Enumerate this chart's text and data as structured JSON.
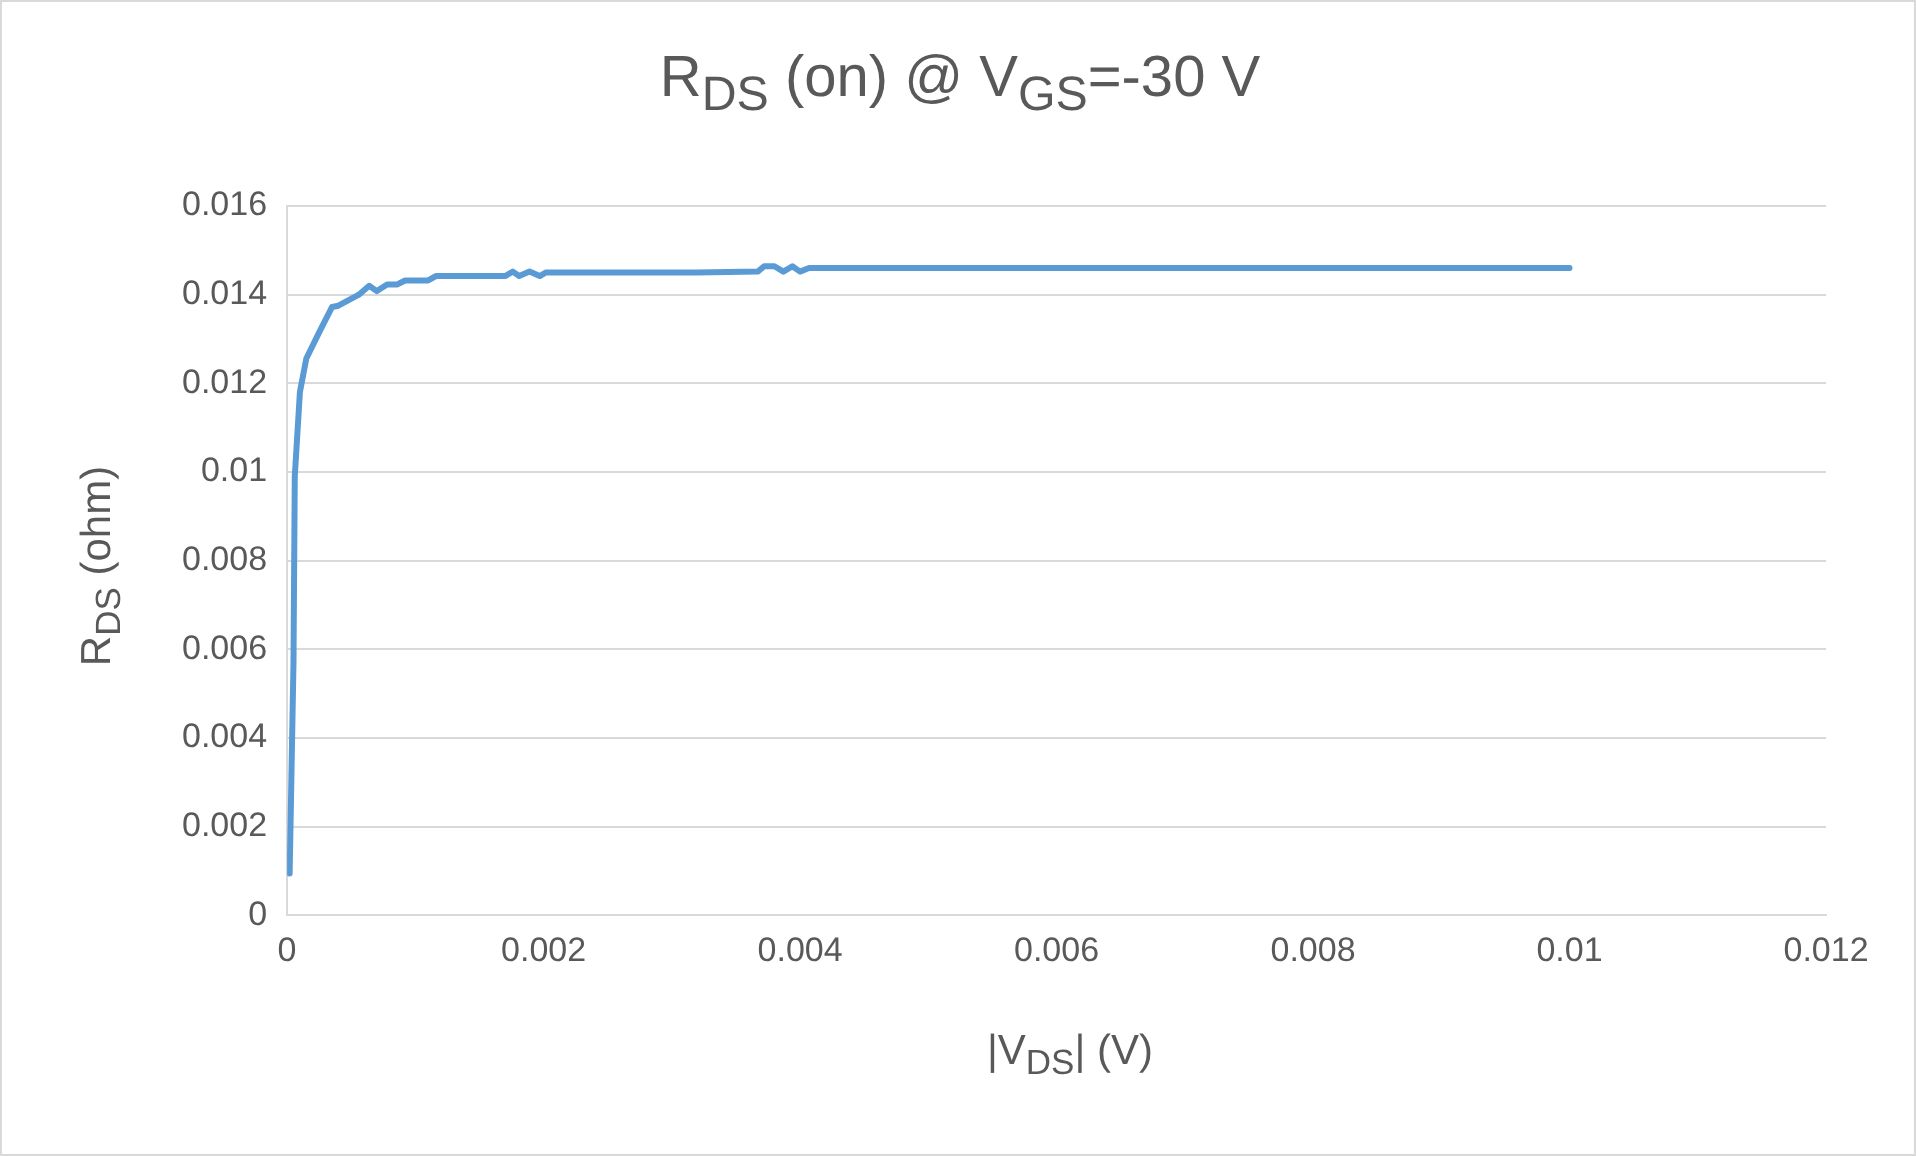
{
  "chart_data": {
    "type": "line",
    "title": "R$_{DS}$ (on) @ V$_{GS}$=-30 V",
    "xlabel": "|V$_{DS}$|  (V)",
    "ylabel": "R$_{DS}$ (ohm)",
    "series": [
      {
        "color": "#5b9bd5",
        "x": [
          2e-05,
          5e-05,
          6e-05,
          0.0001,
          0.00015,
          0.00025,
          0.00035,
          0.0004,
          0.00056,
          0.00064,
          0.0007,
          0.00078,
          0.00086,
          0.00092,
          0.0011,
          0.00116,
          0.0017,
          0.00176,
          0.00181,
          0.00189,
          0.00197,
          0.00202,
          0.0032,
          0.00367,
          0.00372,
          0.0038,
          0.00387,
          0.00394,
          0.004,
          0.00407,
          0.01
        ],
        "values": [
          0.00094,
          0.0057,
          0.0099,
          0.0118,
          0.01256,
          0.01315,
          0.01372,
          0.01375,
          0.014,
          0.0142,
          0.01408,
          0.01423,
          0.01423,
          0.01432,
          0.01432,
          0.01442,
          0.01442,
          0.01452,
          0.01442,
          0.01452,
          0.01442,
          0.0145,
          0.0145,
          0.01452,
          0.01464,
          0.01464,
          0.01452,
          0.01464,
          0.01452,
          0.0146,
          0.0146
        ]
      }
    ],
    "xlim": [
      0,
      0.012
    ],
    "xticks": [
      0,
      0.002,
      0.004,
      0.006,
      0.008,
      0.01,
      0.012
    ],
    "ylim": [
      0,
      0.016
    ],
    "yticks": [
      0,
      0.002,
      0.004,
      0.006,
      0.008,
      0.01,
      0.012,
      0.014,
      0.016
    ],
    "grid": "y",
    "legend": false,
    "marker": "none",
    "line_style": "solid"
  }
}
